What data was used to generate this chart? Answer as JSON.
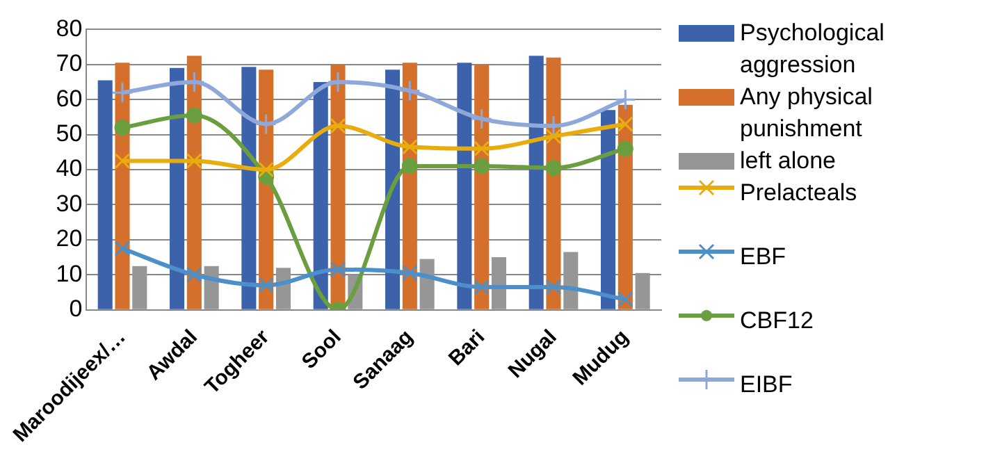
{
  "chart_data": {
    "type": "bar",
    "categories": [
      "Maroodijeex/…",
      "Awdal",
      "Togheer",
      "Sool",
      "Sanaag",
      "Bari",
      "Nugal",
      "Mudug"
    ],
    "series": [
      {
        "name": "Psychological aggression",
        "color": "#3c62ab",
        "values": [
          65.5,
          69,
          69.3,
          65,
          68.5,
          70.5,
          72.5,
          57
        ]
      },
      {
        "name": "Any physical punishment",
        "color": "#d4702b",
        "values": [
          70.5,
          72.5,
          68.5,
          70,
          70.5,
          70,
          72,
          58.5
        ]
      },
      {
        "name": "left alone",
        "color": "#969696",
        "values": [
          12.5,
          12.5,
          12,
          10,
          14.5,
          15,
          16.5,
          10.5
        ]
      },
      {
        "name": "Prelacteals",
        "type": "line",
        "marker": "cross",
        "color": "#e8ad0d",
        "values": [
          42.5,
          42.5,
          40,
          52.5,
          46.5,
          46,
          49.5,
          53
        ]
      },
      {
        "name": "EBF",
        "type": "line",
        "marker": "cross",
        "color": "#4c8fc9",
        "values": [
          17.5,
          10,
          7,
          11.5,
          10.5,
          6.5,
          6.5,
          3
        ]
      },
      {
        "name": "CBF12",
        "type": "line",
        "marker": "circle",
        "color": "#6a9e3e",
        "values": [
          52,
          55.5,
          38,
          0,
          41,
          41,
          40.5,
          46
        ]
      },
      {
        "name": "EIBF",
        "type": "line",
        "marker": "plus",
        "color": "#8fa8da",
        "values": [
          62,
          65,
          53,
          65,
          62.5,
          54.5,
          52.5,
          60
        ]
      }
    ],
    "ylim": [
      0,
      80
    ],
    "yticks": [
      0,
      10,
      20,
      30,
      40,
      50,
      60,
      70,
      80
    ],
    "grid": "y",
    "legend": "right"
  }
}
